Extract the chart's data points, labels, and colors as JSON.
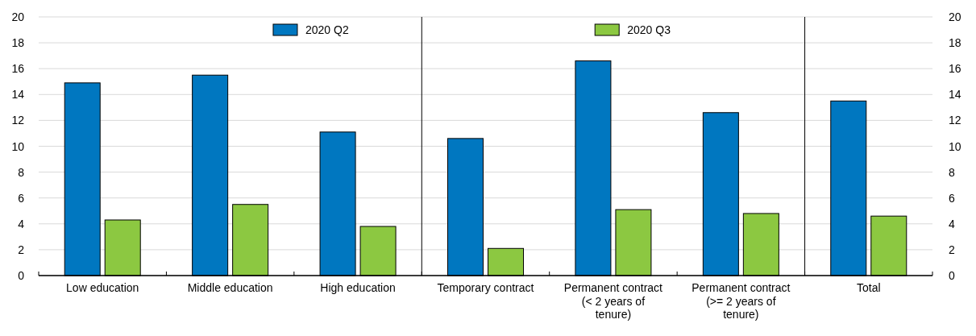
{
  "chart_data": {
    "type": "bar",
    "categories": [
      "Low education",
      "Middle education",
      "High education",
      "Temporary contract",
      "Permanent contract (< 2 years of tenure)",
      "Permanent contract (>= 2 years of tenure)",
      "Total"
    ],
    "series": [
      {
        "name": "2020 Q2",
        "color": "#0077c0",
        "values": [
          14.9,
          15.5,
          11.1,
          10.6,
          16.6,
          12.6,
          13.5
        ]
      },
      {
        "name": "2020 Q3",
        "color": "#8cc841",
        "values": [
          4.3,
          5.5,
          3.8,
          2.1,
          5.1,
          4.8,
          4.6
        ]
      }
    ],
    "ylim": [
      0,
      20
    ],
    "yticks": [
      0,
      2,
      4,
      6,
      8,
      10,
      12,
      14,
      16,
      18,
      20
    ],
    "y2lim": [
      0,
      20
    ],
    "y2ticks": [
      0,
      2,
      4,
      6,
      8,
      10,
      12,
      14,
      16,
      18,
      20
    ],
    "grid": "y",
    "legend": "top"
  }
}
